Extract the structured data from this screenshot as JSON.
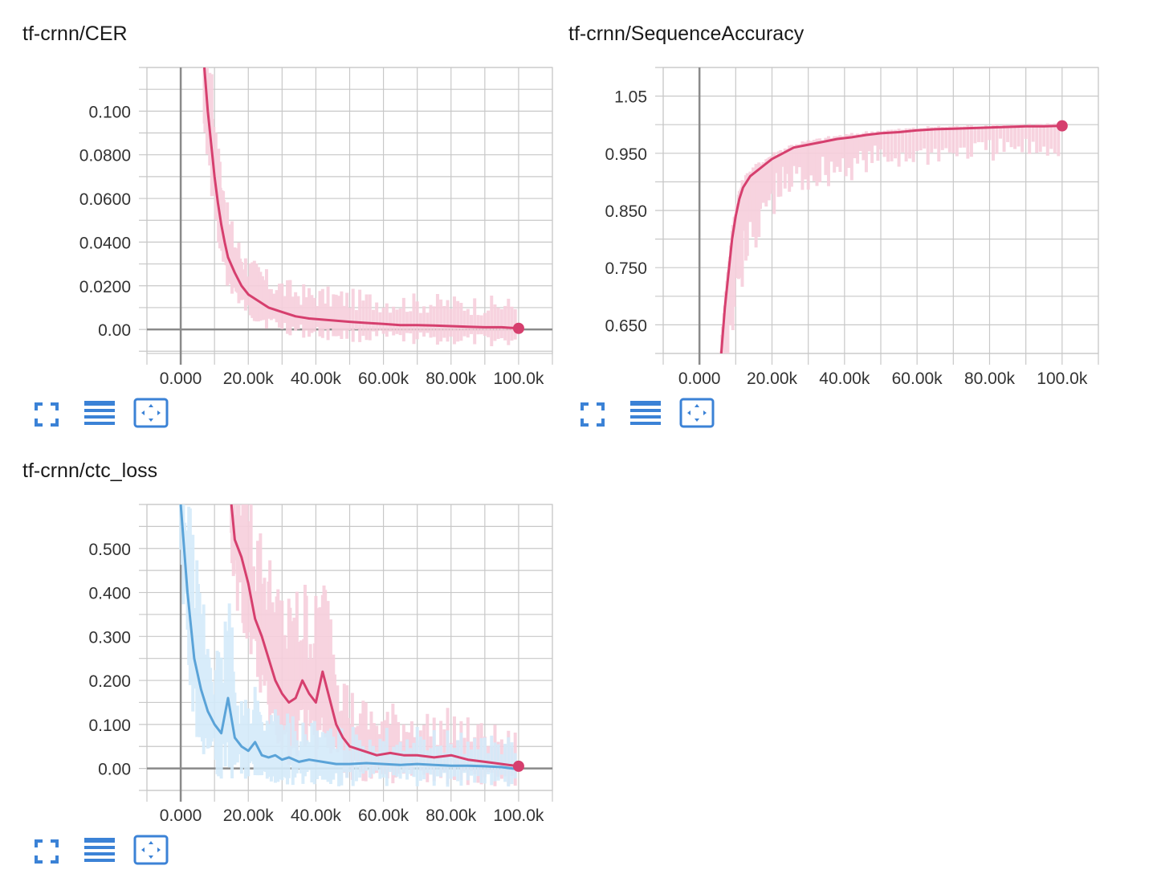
{
  "colors": {
    "pink": "#d63f6e",
    "pink_raw": "#f7cfdc",
    "blue": "#5aa3d8",
    "blue_dark": "#6a9fd0",
    "blue_raw": "#d4ebfa",
    "grid": "#c8c8c8",
    "axis": "#8a8a8a",
    "toolbar_icon": "#3b82d6"
  },
  "toolbar": {
    "fullscreen_icon": "fullscreen-icon",
    "data_icon": "list-icon",
    "fit_icon": "fit-domain-icon"
  },
  "cards": [
    {
      "title": "tf-crnn/CER"
    },
    {
      "title": "tf-crnn/SequenceAccuracy"
    },
    {
      "title": "tf-crnn/ctc_loss"
    }
  ],
  "chart_data": [
    {
      "type": "line",
      "title": "tf-crnn/CER",
      "x_ticks": [
        "0.000",
        "20.00k",
        "40.00k",
        "60.00k",
        "80.00k",
        "100.0k"
      ],
      "y_ticks": [
        "0.100",
        "0.0800",
        "0.0600",
        "0.0400",
        "0.0200",
        "0.00"
      ],
      "y_tick_values": [
        0.1,
        0.08,
        0.06,
        0.04,
        0.02,
        0.0
      ],
      "xlim": [
        -10000,
        110000
      ],
      "ylim": [
        -0.011,
        0.12
      ],
      "grid": true,
      "series": [
        {
          "color": "#d63f6e",
          "x": [
            7000,
            8000,
            9000,
            10000,
            11000,
            12000,
            13000,
            14000,
            16000,
            18000,
            20000,
            23000,
            26000,
            30000,
            34000,
            38000,
            42000,
            46000,
            50000,
            55000,
            60000,
            65000,
            70000,
            75000,
            80000,
            85000,
            90000,
            95000,
            100000
          ],
          "y": [
            0.12,
            0.1,
            0.085,
            0.07,
            0.058,
            0.048,
            0.04,
            0.033,
            0.026,
            0.02,
            0.016,
            0.013,
            0.01,
            0.008,
            0.006,
            0.005,
            0.0045,
            0.004,
            0.0035,
            0.003,
            0.0025,
            0.002,
            0.002,
            0.0018,
            0.0015,
            0.0012,
            0.001,
            0.001,
            0.0005
          ]
        }
      ],
      "end_marker": {
        "x": 100000,
        "y": 0.0005
      }
    },
    {
      "type": "line",
      "title": "tf-crnn/SequenceAccuracy",
      "x_ticks": [
        "0.000",
        "20.00k",
        "40.00k",
        "60.00k",
        "80.00k",
        "100.0k"
      ],
      "y_ticks": [
        "1.05",
        "0.950",
        "0.850",
        "0.750",
        "0.650"
      ],
      "y_tick_values": [
        1.05,
        0.95,
        0.85,
        0.75,
        0.65
      ],
      "xlim": [
        -10000,
        110000
      ],
      "ylim": [
        0.6,
        1.1
      ],
      "grid": true,
      "series": [
        {
          "color": "#d63f6e",
          "x": [
            6000,
            7000,
            8000,
            9000,
            10000,
            11000,
            12000,
            14000,
            16000,
            18000,
            20000,
            23000,
            26000,
            30000,
            34000,
            38000,
            42000,
            46000,
            50000,
            55000,
            60000,
            65000,
            70000,
            75000,
            80000,
            85000,
            90000,
            95000,
            100000
          ],
          "y": [
            0.6,
            0.68,
            0.74,
            0.8,
            0.84,
            0.87,
            0.89,
            0.91,
            0.92,
            0.93,
            0.94,
            0.95,
            0.96,
            0.965,
            0.97,
            0.975,
            0.978,
            0.982,
            0.985,
            0.987,
            0.99,
            0.992,
            0.993,
            0.994,
            0.995,
            0.996,
            0.997,
            0.997,
            0.998
          ]
        }
      ],
      "end_marker": {
        "x": 100000,
        "y": 0.998
      }
    },
    {
      "type": "line",
      "title": "tf-crnn/ctc_loss",
      "x_ticks": [
        "0.000",
        "20.00k",
        "40.00k",
        "60.00k",
        "80.00k",
        "100.0k"
      ],
      "y_ticks": [
        "0.500",
        "0.400",
        "0.300",
        "0.200",
        "0.100",
        "0.00"
      ],
      "y_tick_values": [
        0.5,
        0.4,
        0.3,
        0.2,
        0.1,
        0.0
      ],
      "xlim": [
        -10000,
        110000
      ],
      "ylim": [
        -0.05,
        0.6
      ],
      "grid": true,
      "series": [
        {
          "color": "#d63f6e",
          "x": [
            15000,
            16000,
            18000,
            20000,
            22000,
            24000,
            26000,
            28000,
            30000,
            32000,
            34000,
            36000,
            38000,
            40000,
            42000,
            44000,
            46000,
            48000,
            50000,
            54000,
            58000,
            62000,
            66000,
            70000,
            75000,
            80000,
            85000,
            90000,
            95000,
            100000
          ],
          "y": [
            0.6,
            0.52,
            0.48,
            0.42,
            0.34,
            0.3,
            0.25,
            0.2,
            0.17,
            0.15,
            0.16,
            0.2,
            0.17,
            0.15,
            0.22,
            0.16,
            0.1,
            0.07,
            0.05,
            0.04,
            0.03,
            0.035,
            0.03,
            0.03,
            0.025,
            0.03,
            0.02,
            0.015,
            0.01,
            0.005
          ]
        },
        {
          "color": "#5aa3d8",
          "x": [
            0,
            2000,
            4000,
            6000,
            8000,
            10000,
            12000,
            14000,
            16000,
            18000,
            20000,
            22000,
            24000,
            26000,
            28000,
            30000,
            32000,
            35000,
            38000,
            42000,
            46000,
            50000,
            55000,
            60000,
            65000,
            70000,
            75000,
            80000,
            85000,
            90000,
            95000,
            100000
          ],
          "y": [
            0.6,
            0.4,
            0.25,
            0.18,
            0.13,
            0.1,
            0.08,
            0.16,
            0.07,
            0.05,
            0.04,
            0.06,
            0.03,
            0.025,
            0.03,
            0.02,
            0.025,
            0.015,
            0.02,
            0.015,
            0.01,
            0.01,
            0.012,
            0.01,
            0.008,
            0.01,
            0.008,
            0.006,
            0.006,
            0.005,
            0.003,
            -0.002
          ]
        }
      ],
      "end_marker": {
        "x": 100000,
        "y": 0.005
      }
    }
  ]
}
